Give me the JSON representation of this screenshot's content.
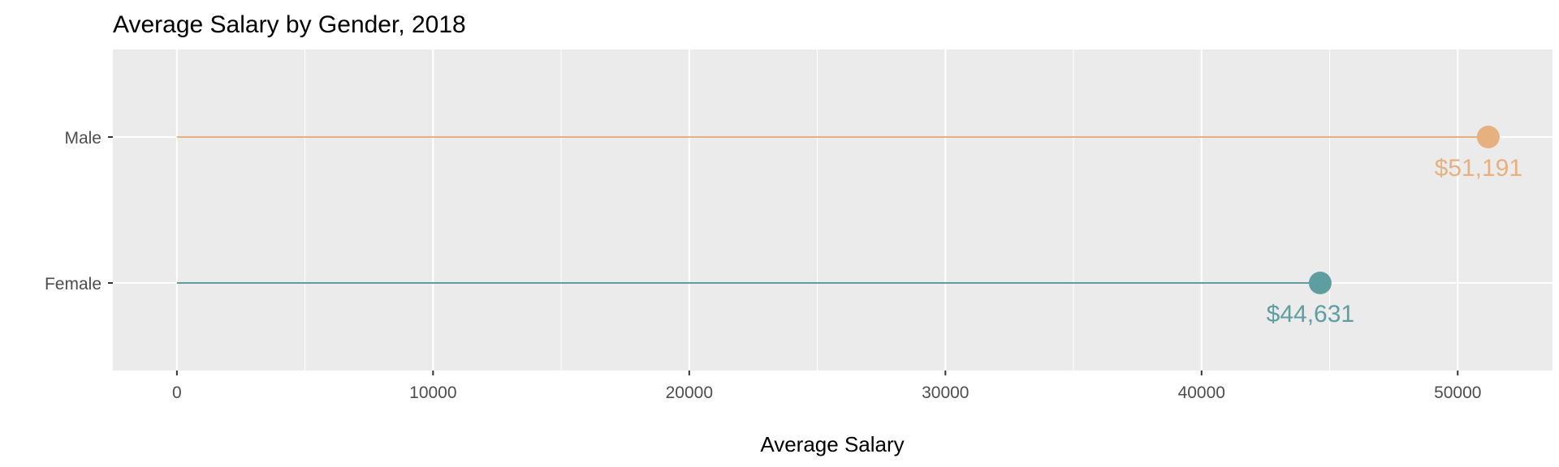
{
  "chart_data": {
    "type": "lollipop",
    "title": "Average Salary by Gender, 2018",
    "xlabel": "Average Salary",
    "ylabel": "",
    "xlim": [
      -2500,
      53700
    ],
    "x_ticks": [
      0,
      10000,
      20000,
      30000,
      40000,
      50000
    ],
    "x_tick_labels": [
      "0",
      "10000",
      "20000",
      "30000",
      "40000",
      "50000"
    ],
    "categories": [
      "Male",
      "Female"
    ],
    "values": [
      51191,
      44631
    ],
    "value_labels": [
      "$51,191",
      "$44,631"
    ],
    "colors": [
      "#E6B07F",
      "#5F9EA0"
    ],
    "grid": true,
    "panel_background": "#EBEBEB",
    "legend": "none"
  }
}
